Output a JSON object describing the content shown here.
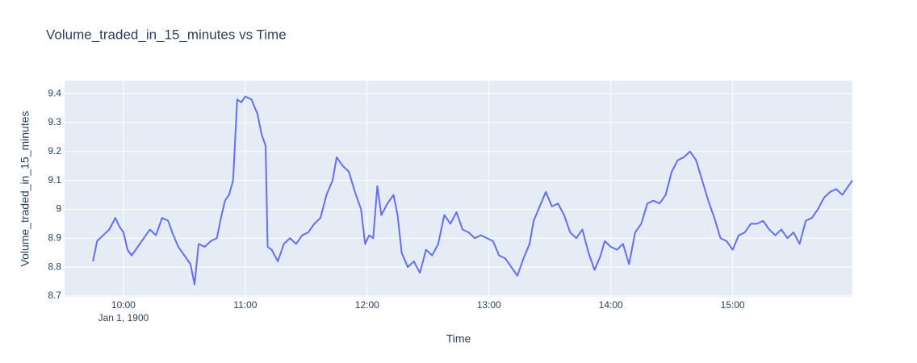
{
  "chart_data": {
    "type": "line",
    "title": "Volume_traded_in_15_minutes vs Time",
    "x_label": "Time",
    "y_label": "Volume_traded_in_15_minutes",
    "x": [
      "09:45",
      "09:47",
      "09:50",
      "09:53",
      "09:56",
      "09:58",
      "10:00",
      "10:02",
      "10:04",
      "10:07",
      "10:10",
      "10:13",
      "10:16",
      "10:19",
      "10:22",
      "10:24",
      "10:27",
      "10:30",
      "10:33",
      "10:35",
      "10:37",
      "10:40",
      "10:43",
      "10:46",
      "10:48",
      "10:50",
      "10:52",
      "10:54",
      "10:56",
      "10:58",
      "11:00",
      "11:03",
      "11:06",
      "11:08",
      "11:10",
      "11:11",
      "11:13",
      "11:16",
      "11:19",
      "11:22",
      "11:25",
      "11:28",
      "11:31",
      "11:34",
      "11:37",
      "11:40",
      "11:43",
      "11:45",
      "11:48",
      "11:51",
      "11:54",
      "11:57",
      "11:59",
      "12:01",
      "12:03",
      "12:05",
      "12:07",
      "12:10",
      "12:13",
      "12:15",
      "12:17",
      "12:20",
      "12:23",
      "12:26",
      "12:29",
      "12:32",
      "12:35",
      "12:38",
      "12:41",
      "12:44",
      "12:47",
      "12:50",
      "12:53",
      "12:56",
      "12:59",
      "13:02",
      "13:05",
      "13:08",
      "13:11",
      "13:14",
      "13:17",
      "13:20",
      "13:22",
      "13:25",
      "13:28",
      "13:31",
      "13:34",
      "13:37",
      "13:40",
      "13:43",
      "13:46",
      "13:49",
      "13:52",
      "13:55",
      "13:57",
      "14:00",
      "14:03",
      "14:06",
      "14:09",
      "14:12",
      "14:15",
      "14:18",
      "14:21",
      "14:24",
      "14:27",
      "14:30",
      "14:33",
      "14:36",
      "14:39",
      "14:42",
      "14:45",
      "14:48",
      "14:51",
      "14:54",
      "14:57",
      "15:00",
      "15:03",
      "15:06",
      "15:09",
      "15:12",
      "15:15",
      "15:18",
      "15:21",
      "15:24",
      "15:27",
      "15:30",
      "15:33",
      "15:36",
      "15:39",
      "15:42",
      "15:45",
      "15:48",
      "15:51",
      "15:54",
      "15:57",
      "15:59"
    ],
    "values": [
      8.82,
      8.89,
      8.91,
      8.93,
      8.97,
      8.94,
      8.92,
      8.86,
      8.84,
      8.87,
      8.9,
      8.93,
      8.91,
      8.97,
      8.96,
      8.92,
      8.87,
      8.84,
      8.81,
      8.74,
      8.88,
      8.87,
      8.89,
      8.9,
      8.97,
      9.03,
      9.05,
      9.1,
      9.38,
      9.37,
      9.39,
      9.38,
      9.33,
      9.26,
      9.22,
      8.87,
      8.86,
      8.82,
      8.88,
      8.9,
      8.88,
      8.91,
      8.92,
      8.95,
      8.97,
      9.05,
      9.1,
      9.18,
      9.15,
      9.13,
      9.06,
      9.0,
      8.88,
      8.91,
      8.9,
      9.08,
      8.98,
      9.02,
      9.05,
      8.98,
      8.85,
      8.8,
      8.82,
      8.78,
      8.86,
      8.84,
      8.88,
      8.98,
      8.95,
      8.99,
      8.93,
      8.92,
      8.9,
      8.91,
      8.9,
      8.89,
      8.84,
      8.83,
      8.8,
      8.77,
      8.83,
      8.88,
      8.96,
      9.01,
      9.06,
      9.01,
      9.02,
      8.98,
      8.92,
      8.9,
      8.93,
      8.85,
      8.79,
      8.84,
      8.89,
      8.87,
      8.86,
      8.88,
      8.81,
      8.92,
      8.95,
      9.02,
      9.03,
      9.02,
      9.05,
      9.13,
      9.17,
      9.18,
      9.2,
      9.17,
      9.1,
      9.03,
      8.97,
      8.9,
      8.89,
      8.86,
      8.91,
      8.92,
      8.95,
      8.95,
      8.96,
      8.93,
      8.91,
      8.93,
      8.9,
      8.92,
      8.88,
      8.96,
      8.97,
      9.0,
      9.04,
      9.06,
      9.07,
      9.05,
      9.08,
      9.1
    ],
    "color": "#636efa",
    "xlim": [
      "09:31",
      "15:59"
    ],
    "xticks": [
      "10:00",
      "11:00",
      "12:00",
      "13:00",
      "14:00",
      "15:00"
    ],
    "xtick_sublabel": "Jan 1, 1900",
    "ylim": [
      8.697,
      9.445
    ],
    "yticks": [
      8.7,
      8.8,
      8.9,
      9,
      9.1,
      9.2,
      9.3,
      9.4
    ],
    "grid": true
  }
}
